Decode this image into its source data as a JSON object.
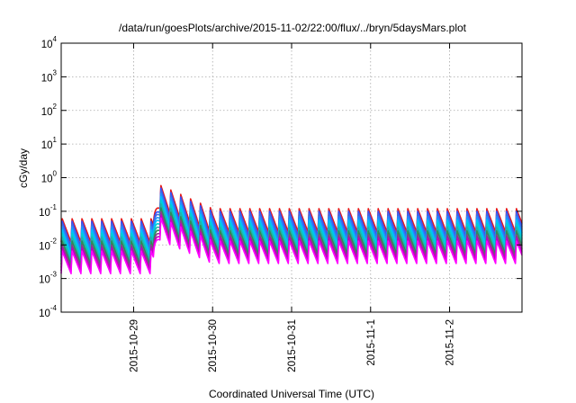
{
  "chart_data": {
    "type": "line",
    "title": "/data/run/goesPlots/archive/2015-11-02/22:00/flux/../bryn/5daysMars.plot",
    "xlabel": "Coordinated Universal Time (UTC)",
    "ylabel": "cGy/day",
    "yscale": "log",
    "ylim": [
      0.0001,
      10000
    ],
    "y_ticks": [
      {
        "base": "10",
        "exp": "-4",
        "value": 0.0001
      },
      {
        "base": "10",
        "exp": "-3",
        "value": 0.001
      },
      {
        "base": "10",
        "exp": "-2",
        "value": 0.01
      },
      {
        "base": "10",
        "exp": "-1",
        "value": 0.1
      },
      {
        "base": "10",
        "exp": "0",
        "value": 1
      },
      {
        "base": "10",
        "exp": "1",
        "value": 10
      },
      {
        "base": "10",
        "exp": "2",
        "value": 100
      },
      {
        "base": "10",
        "exp": "3",
        "value": 1000
      },
      {
        "base": "10",
        "exp": "4",
        "value": 10000
      }
    ],
    "xlim": [
      "2015-10-28T02:00",
      "2015-11-02T22:00"
    ],
    "x_ticks": [
      {
        "label": "2015-10-29",
        "value": "2015-10-29T00:00"
      },
      {
        "label": "2015-10-30",
        "value": "2015-10-30T00:00"
      },
      {
        "label": "2015-10-31",
        "value": "2015-10-31T00:00"
      },
      {
        "label": "2015-11-1",
        "value": "2015-11-01T00:00"
      },
      {
        "label": "2015-11-2",
        "value": "2015-11-02T00:00"
      }
    ],
    "grid": true,
    "legend": "none",
    "event": {
      "start": "2015-10-29T06:00",
      "peak": "2015-10-29T08:00",
      "end": "2015-10-30T00:00",
      "peak_factor": 10
    },
    "oscillation_period_hours": 3,
    "series": [
      {
        "color": "#e41a1c",
        "peak": 0.06,
        "trough": 0.012
      },
      {
        "color": "#3050ff",
        "peak": 0.05,
        "trough": 0.009
      },
      {
        "color": "#4169e1",
        "peak": 0.042,
        "trough": 0.0075
      },
      {
        "color": "#1e90ff",
        "peak": 0.035,
        "trough": 0.006
      },
      {
        "color": "#00bfff",
        "peak": 0.028,
        "trough": 0.005
      },
      {
        "color": "#00ced1",
        "peak": 0.022,
        "trough": 0.004
      },
      {
        "color": "#20b2aa",
        "peak": 0.017,
        "trough": 0.0032
      },
      {
        "color": "#2e8b57",
        "peak": 0.013,
        "trough": 0.0026
      },
      {
        "color": "#8b3a8b",
        "peak": 0.01,
        "trough": 0.0021
      },
      {
        "color": "#c000c0",
        "peak": 0.008,
        "trough": 0.0017
      },
      {
        "color": "#ff00ff",
        "peak": 0.0065,
        "trough": 0.0014
      }
    ]
  }
}
